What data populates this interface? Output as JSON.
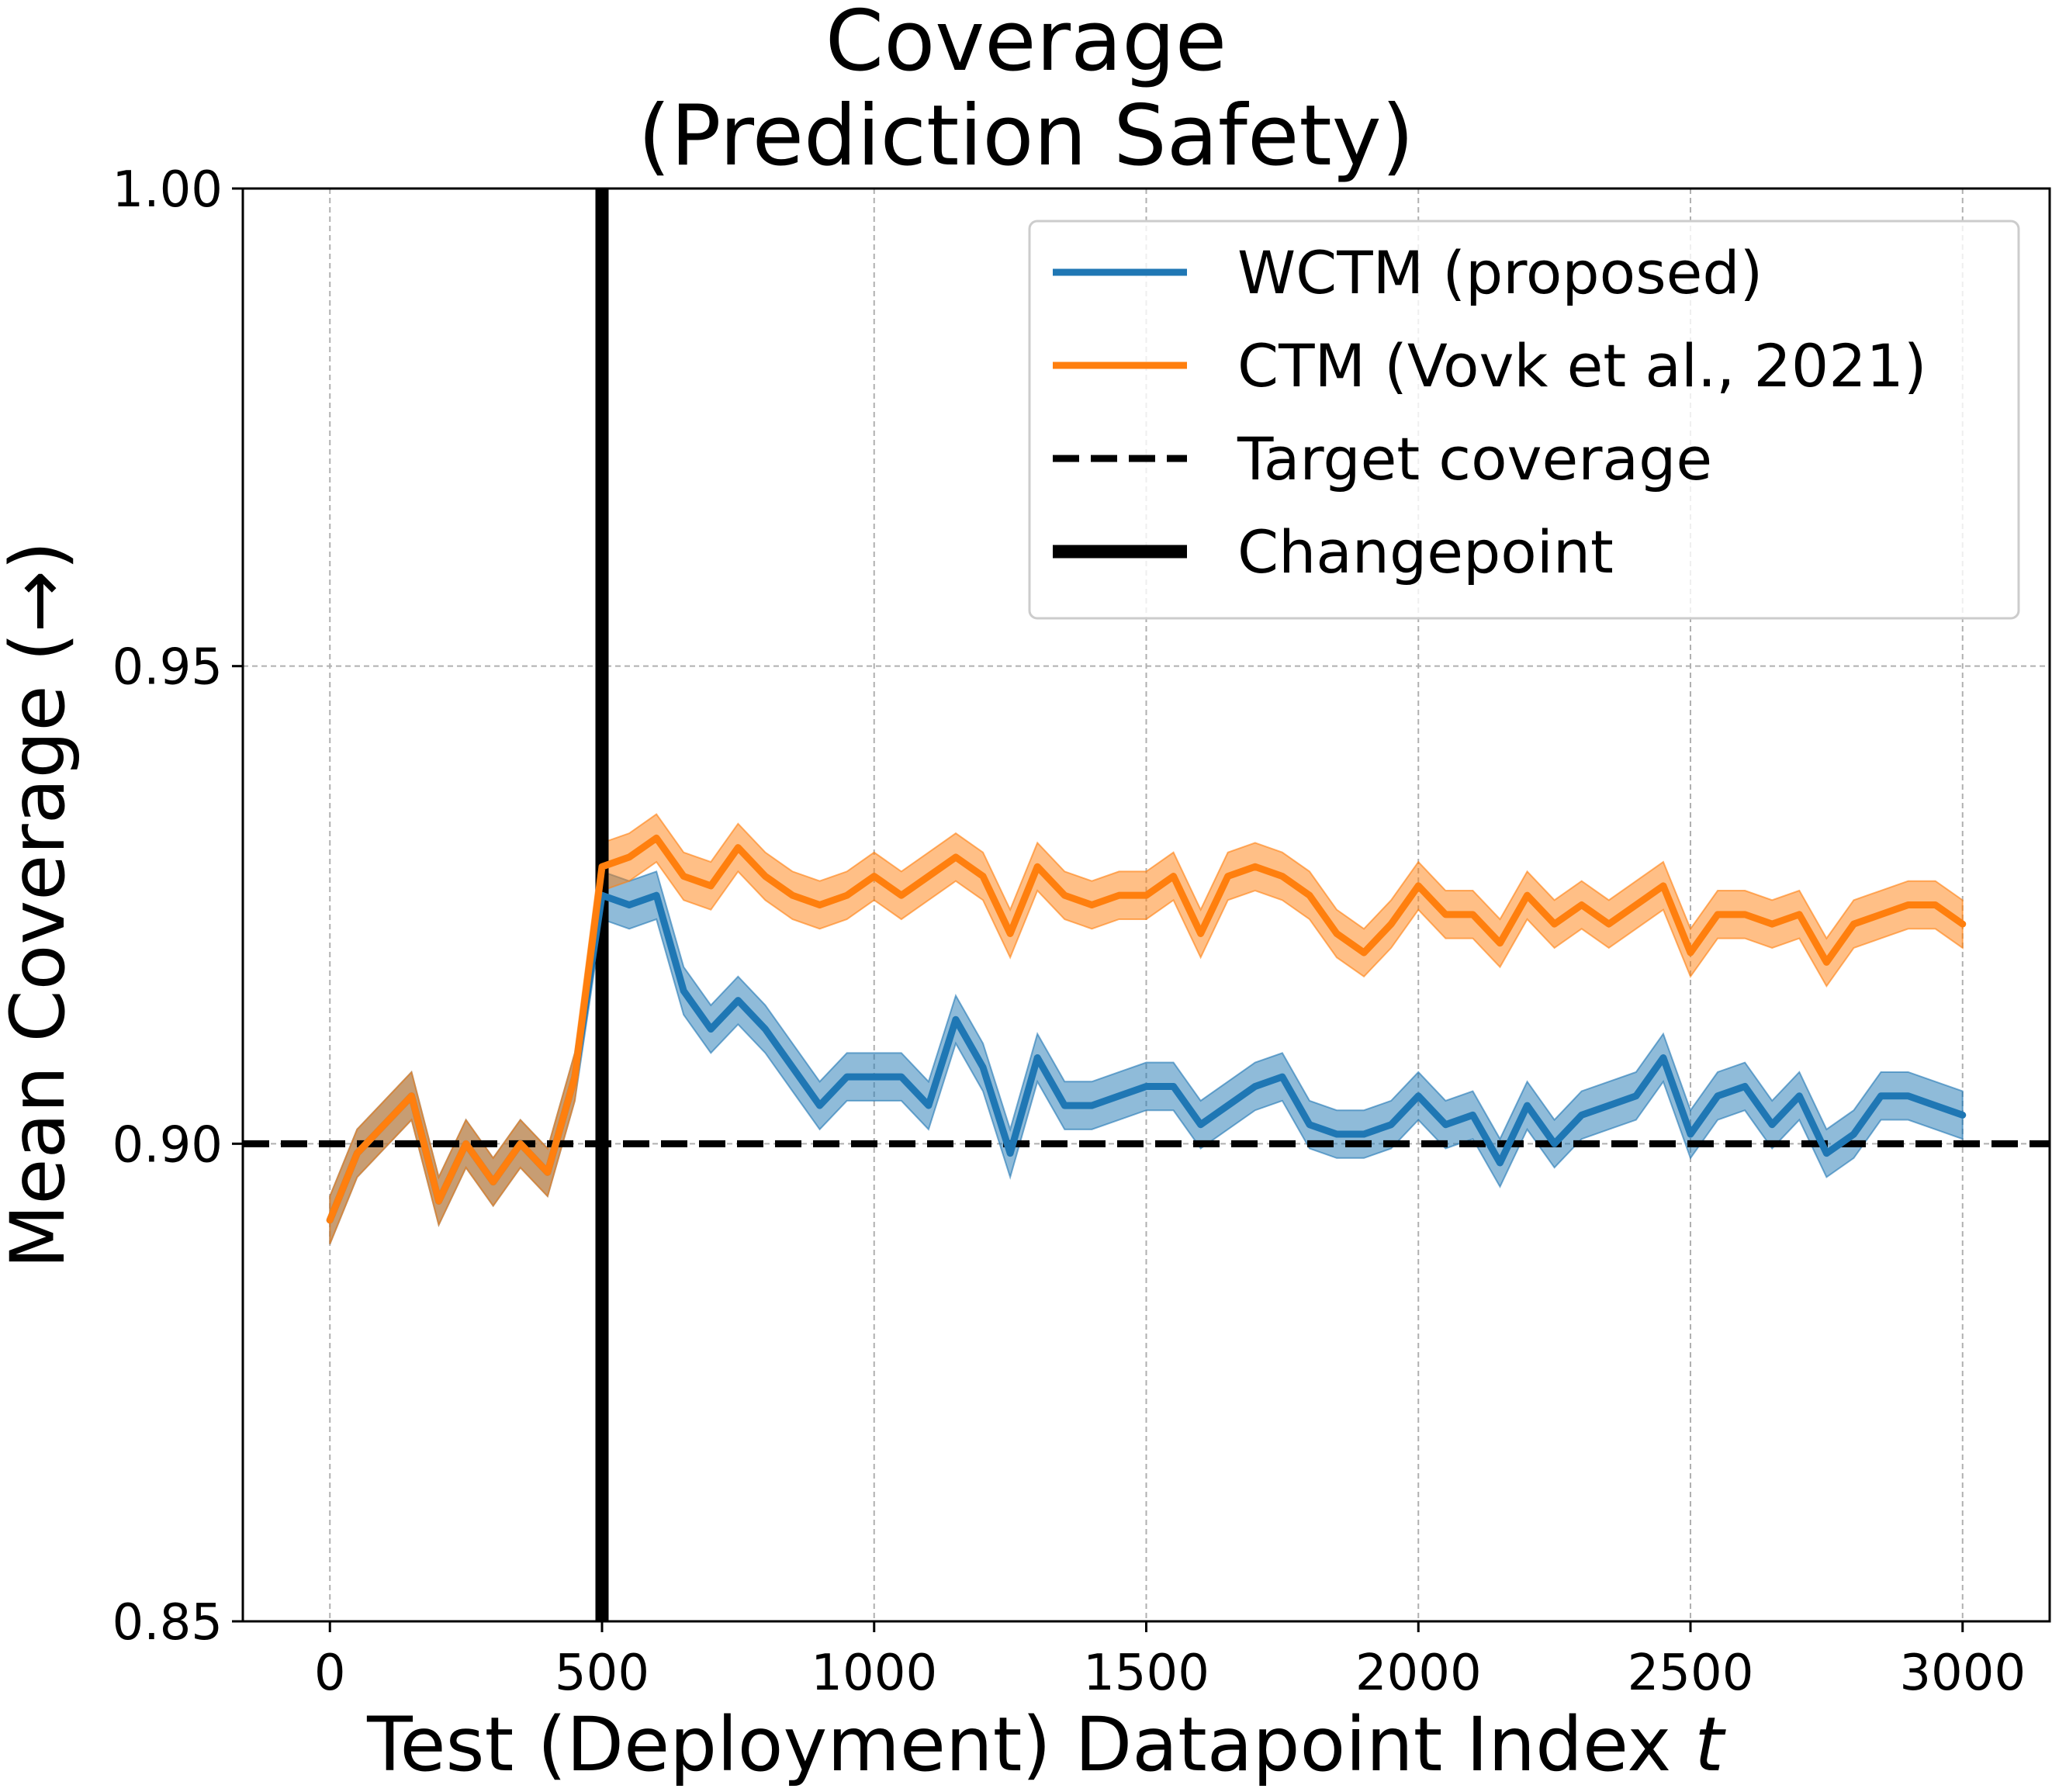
{
  "chart_data": {
    "type": "line",
    "title": "Coverage",
    "subtitle": "(Prediction Safety)",
    "xlabel": "Test (Deployment) Datapoint Index",
    "xlabel_var": "t",
    "ylabel": "Mean Coverage (→)",
    "xlim": [
      -160,
      3160
    ],
    "ylim": [
      0.85,
      1.0
    ],
    "xticks": [
      0,
      500,
      1000,
      1500,
      2000,
      2500,
      3000
    ],
    "xtick_labels": [
      "0",
      "500",
      "1000",
      "1500",
      "2000",
      "2500",
      "3000"
    ],
    "yticks": [
      0.85,
      0.9,
      0.95,
      1.0
    ],
    "ytick_labels": [
      "0.85",
      "0.90",
      "0.95",
      "1.00"
    ],
    "grid": true,
    "legend_position": "top-right",
    "target_coverage": 0.9,
    "changepoint": 500,
    "band_halfwidth": 0.0025,
    "x": [
      0,
      50,
      100,
      150,
      200,
      250,
      300,
      350,
      400,
      450,
      500,
      550,
      600,
      650,
      700,
      750,
      800,
      850,
      900,
      950,
      1000,
      1050,
      1100,
      1150,
      1200,
      1250,
      1300,
      1350,
      1400,
      1450,
      1500,
      1550,
      1600,
      1650,
      1700,
      1750,
      1800,
      1850,
      1900,
      1950,
      2000,
      2050,
      2100,
      2150,
      2200,
      2250,
      2300,
      2350,
      2400,
      2450,
      2500,
      2550,
      2600,
      2650,
      2700,
      2750,
      2800,
      2850,
      2900,
      2950,
      3000
    ],
    "series": [
      {
        "name": "WCTM (proposed)",
        "color": "#1f77b4",
        "values": [
          0.892,
          0.899,
          0.902,
          0.905,
          0.894,
          0.9,
          0.896,
          0.9,
          0.897,
          0.907,
          0.926,
          0.925,
          0.926,
          0.916,
          0.912,
          0.915,
          0.912,
          0.908,
          0.904,
          0.907,
          0.907,
          0.907,
          0.904,
          0.913,
          0.908,
          0.899,
          0.909,
          0.904,
          0.904,
          0.905,
          0.906,
          0.906,
          0.902,
          0.904,
          0.906,
          0.907,
          0.902,
          0.901,
          0.901,
          0.902,
          0.905,
          0.902,
          0.903,
          0.898,
          0.904,
          0.9,
          0.903,
          0.904,
          0.905,
          0.909,
          0.901,
          0.905,
          0.906,
          0.902,
          0.905,
          0.899,
          0.901,
          0.905,
          0.905,
          0.904,
          0.903
        ]
      },
      {
        "name": "CTM (Vovk et al., 2021)",
        "color": "#ff7f0e",
        "values": [
          0.892,
          0.899,
          0.902,
          0.905,
          0.894,
          0.9,
          0.896,
          0.9,
          0.897,
          0.907,
          0.929,
          0.93,
          0.932,
          0.928,
          0.927,
          0.931,
          0.928,
          0.926,
          0.925,
          0.926,
          0.928,
          0.926,
          0.928,
          0.93,
          0.928,
          0.922,
          0.929,
          0.926,
          0.925,
          0.926,
          0.926,
          0.928,
          0.922,
          0.928,
          0.929,
          0.928,
          0.926,
          0.922,
          0.92,
          0.923,
          0.927,
          0.924,
          0.924,
          0.921,
          0.926,
          0.923,
          0.925,
          0.923,
          0.925,
          0.927,
          0.92,
          0.924,
          0.924,
          0.923,
          0.924,
          0.919,
          0.923,
          0.924,
          0.925,
          0.925,
          0.923
        ]
      }
    ],
    "legend": [
      {
        "label": "WCTM (proposed)",
        "style": "solid",
        "color": "#1f77b4"
      },
      {
        "label": "CTM (Vovk et al., 2021)",
        "style": "solid",
        "color": "#ff7f0e"
      },
      {
        "label": "Target coverage",
        "style": "dashed",
        "color": "#000000"
      },
      {
        "label": "Changepoint",
        "style": "thick",
        "color": "#000000"
      }
    ]
  }
}
